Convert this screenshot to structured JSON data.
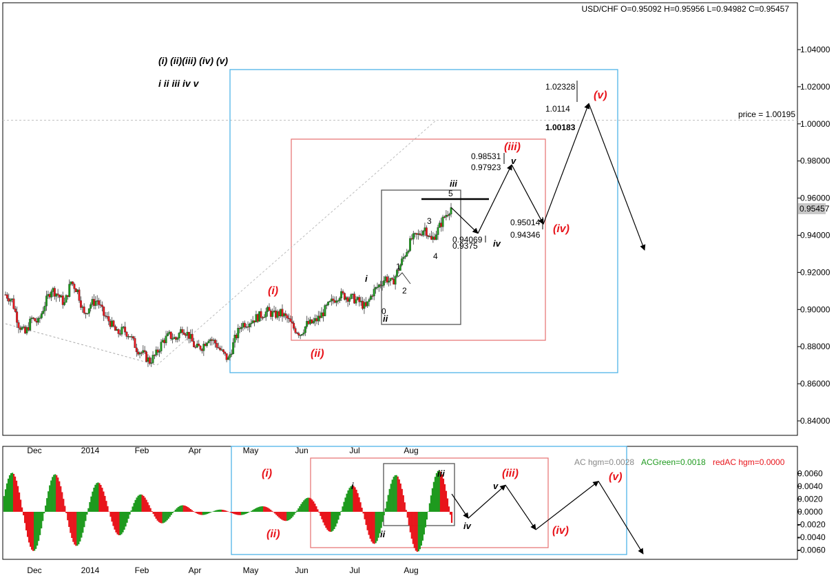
{
  "header": {
    "ohlc": "USD/CHF O=0.95092 H=0.95956 L=0.94982 C=0.95457"
  },
  "legend": {
    "degree_minor": "(i) (ii)(iii) (iv) (v)",
    "degree_minute": "i ii iii iv v"
  },
  "price_line_label": "price = 1.00195",
  "current_price": "0.95457",
  "indicator_header": {
    "ac": "AC hgm=0.0028",
    "green": "ACGreen=0.0018",
    "red": "redAC hgm=0.0000"
  },
  "colors": {
    "up": "#1e9a1e",
    "down": "#e8141b",
    "blue_box": "#4fb3e8",
    "red_box": "#e87878",
    "grid": "#c0c0c0"
  },
  "chart_data": [
    {
      "type": "candlestick",
      "symbol": "USD/CHF",
      "x_tick_labels": [
        "Dec",
        "2014",
        "Feb",
        "Apr",
        "May",
        "Jun",
        "Jul",
        "Aug"
      ],
      "y_tick_labels": [
        "1.04000",
        "1.02000",
        "1.00000",
        "0.98000",
        "0.96000",
        "0.94000",
        "0.92000",
        "0.90000",
        "0.88000",
        "0.86000",
        "0.84000"
      ],
      "ylim": [
        0.8325,
        1.0505
      ],
      "ohlc_last": {
        "open": 0.95092,
        "high": 0.95956,
        "low": 0.94982,
        "close": 0.95457
      },
      "close_path": [
        [
          0,
          0.908
        ],
        [
          4,
          0.905
        ],
        [
          8,
          0.892
        ],
        [
          12,
          0.887
        ],
        [
          16,
          0.895
        ],
        [
          20,
          0.893
        ],
        [
          24,
          0.903
        ],
        [
          28,
          0.911
        ],
        [
          32,
          0.908
        ],
        [
          36,
          0.903
        ],
        [
          40,
          0.915
        ],
        [
          44,
          0.91
        ],
        [
          48,
          0.897
        ],
        [
          52,
          0.903
        ],
        [
          56,
          0.905
        ],
        [
          60,
          0.897
        ],
        [
          64,
          0.893
        ],
        [
          68,
          0.887
        ],
        [
          72,
          0.889
        ],
        [
          76,
          0.886
        ],
        [
          80,
          0.879
        ],
        [
          84,
          0.876
        ],
        [
          88,
          0.872
        ],
        [
          92,
          0.876
        ],
        [
          96,
          0.883
        ],
        [
          100,
          0.886
        ],
        [
          104,
          0.884
        ],
        [
          108,
          0.89
        ],
        [
          112,
          0.886
        ],
        [
          116,
          0.879
        ],
        [
          120,
          0.88
        ],
        [
          124,
          0.885
        ],
        [
          128,
          0.882
        ],
        [
          132,
          0.877
        ],
        [
          136,
          0.873
        ],
        [
          140,
          0.884
        ],
        [
          144,
          0.892
        ],
        [
          148,
          0.893
        ],
        [
          152,
          0.895
        ],
        [
          156,
          0.897
        ],
        [
          160,
          0.899
        ],
        [
          164,
          0.897
        ],
        [
          168,
          0.898
        ],
        [
          172,
          0.895
        ],
        [
          176,
          0.89
        ],
        [
          180,
          0.887
        ],
        [
          184,
          0.892
        ],
        [
          188,
          0.893
        ],
        [
          192,
          0.896
        ],
        [
          196,
          0.901
        ],
        [
          200,
          0.905
        ],
        [
          204,
          0.908
        ],
        [
          208,
          0.907
        ],
        [
          212,
          0.906
        ],
        [
          216,
          0.904
        ],
        [
          220,
          0.901
        ],
        [
          224,
          0.909
        ],
        [
          228,
          0.913
        ],
        [
          232,
          0.917
        ],
        [
          236,
          0.914
        ],
        [
          240,
          0.922
        ],
        [
          244,
          0.93
        ],
        [
          248,
          0.938
        ],
        [
          252,
          0.94
        ],
        [
          256,
          0.944
        ],
        [
          260,
          0.937
        ],
        [
          264,
          0.943
        ],
        [
          268,
          0.95
        ],
        [
          272,
          0.955
        ]
      ],
      "price_levels": [
        1.02328,
        1.0114,
        1.00183,
        0.98531,
        0.97923,
        0.95014,
        0.94346,
        0.94069,
        0.9375
      ],
      "horizontal_price_line": 1.00195,
      "projection": [
        [
          0.955,
          "iii"
        ],
        [
          0.941,
          "iv"
        ],
        [
          0.978,
          "(iii) v"
        ],
        [
          0.946,
          "(iv)"
        ],
        [
          1.011,
          "(v)"
        ],
        [
          0.932,
          ""
        ]
      ],
      "wave_labels_red": [
        "(i)",
        "(ii)",
        "(iii)",
        "(iv)",
        "(v)"
      ],
      "wave_labels_black": [
        "i",
        "ii",
        "iii",
        "iv",
        "v"
      ],
      "sub_wave_numbers": [
        "0",
        "1",
        "2",
        "3",
        "4",
        "5"
      ]
    },
    {
      "type": "histogram",
      "name": "AC",
      "y_tick_labels": [
        "0.0060",
        "0.0040",
        "0.0020",
        "0.0000",
        "-0.0020",
        "-0.0040",
        "-0.0060"
      ],
      "ylim": [
        -0.0072,
        0.0072
      ],
      "projection": [
        [
          0.0028,
          "iii"
        ],
        [
          -0.001,
          "iv"
        ],
        [
          0.0042,
          "(iii)"
        ],
        [
          -0.0028,
          "(iv)"
        ],
        [
          0.0048,
          "(v)"
        ],
        [
          -0.0066,
          ""
        ]
      ],
      "wave_labels_red": [
        "(i)",
        "(ii)",
        "(iii)",
        "(iv)",
        "(v)"
      ],
      "wave_labels_black": [
        "i",
        "ii",
        "iii",
        "iv"
      ]
    }
  ]
}
